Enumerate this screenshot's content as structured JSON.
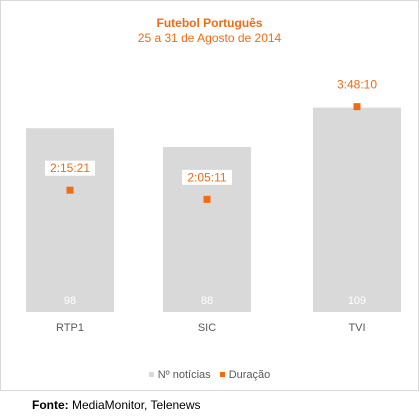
{
  "chart_data": {
    "type": "bar",
    "title": "Futebol Português",
    "subtitle": "25 a 31 de Agosto de 2014",
    "categories": [
      "RTP1",
      "SIC",
      "TVI"
    ],
    "series": [
      {
        "name": "Nº notícias",
        "kind": "bar",
        "values": [
          98,
          88,
          109
        ],
        "labels": [
          "98",
          "88",
          "109"
        ]
      },
      {
        "name": "Duração",
        "kind": "marker",
        "values": [
          "2:15:21",
          "2:05:11",
          "3:48:10"
        ],
        "seconds": [
          8121,
          7511,
          13690
        ]
      }
    ],
    "bar_ylim": [
      0,
      120
    ],
    "marker_ylim": [
      0,
      15000
    ],
    "grid": false,
    "legend_position": "bottom"
  },
  "colors": {
    "bar": "#d9d9d9",
    "marker": "#f26b12",
    "bar_label": "#ffffff",
    "axis_text": "#595959"
  },
  "source": {
    "label": "Fonte:",
    "text": "MediaMonitor, Telenews"
  }
}
